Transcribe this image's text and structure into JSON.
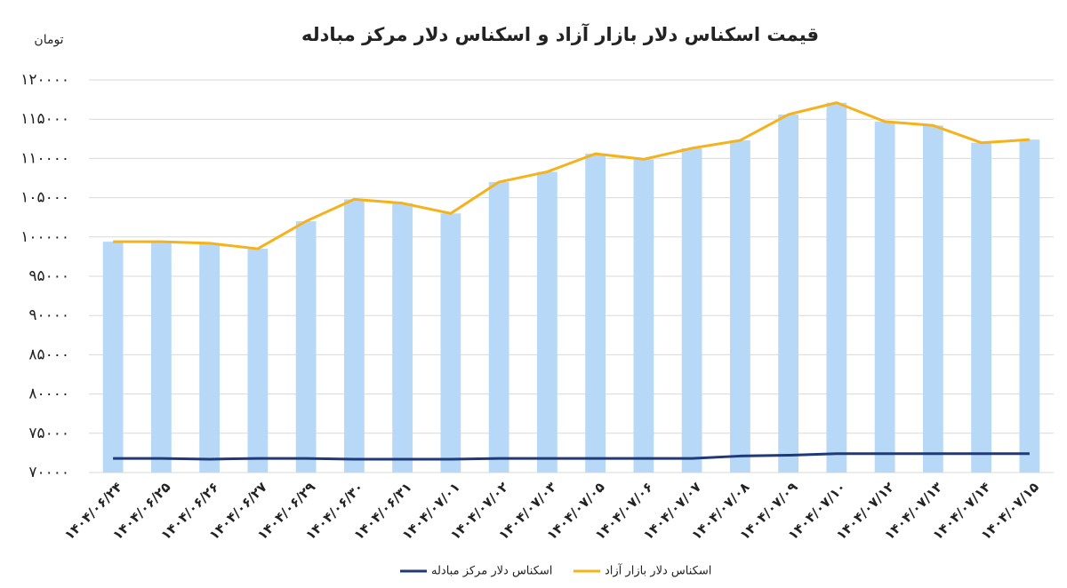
{
  "chart_data": {
    "type": "bar-line",
    "title": "قیمت اسکناس دلار بازار آزاد و اسکناس دلار مرکز مبادله",
    "y_unit": "تومان",
    "categories": [
      "۱۴۰۴/۰۶/۲۴",
      "۱۴۰۴/۰۶/۲۵",
      "۱۴۰۴/۰۶/۲۶",
      "۱۴۰۴/۰۶/۲۷",
      "۱۴۰۴/۰۶/۲۹",
      "۱۴۰۴/۰۶/۳۰",
      "۱۴۰۴/۰۶/۳۱",
      "۱۴۰۴/۰۷/۰۱",
      "۱۴۰۴/۰۷/۰۲",
      "۱۴۰۴/۰۷/۰۳",
      "۱۴۰۴/۰۷/۰۵",
      "۱۴۰۴/۰۷/۰۶",
      "۱۴۰۴/۰۷/۰۷",
      "۱۴۰۴/۰۷/۰۸",
      "۱۴۰۴/۰۷/۰۹",
      "۱۴۰۴/۰۷/۱۰",
      "۱۴۰۴/۰۷/۱۲",
      "۱۴۰۴/۰۷/۱۳",
      "۱۴۰۴/۰۷/۱۴",
      "۱۴۰۴/۰۷/۱۵"
    ],
    "series": [
      {
        "name": "اسکناس دلار مرکز مبادله",
        "color": "#1f3a7a",
        "values": [
          71800,
          71800,
          71700,
          71800,
          71800,
          71700,
          71700,
          71700,
          71800,
          71800,
          71800,
          71800,
          71800,
          72100,
          72200,
          72400,
          72400,
          72400,
          72400,
          72400
        ]
      },
      {
        "name": "اسکناس دلار بازار آزاد",
        "color": "#f5b21b",
        "bar_color": "#b8d8f8",
        "values": [
          99400,
          99400,
          99200,
          98500,
          102000,
          104800,
          104300,
          103000,
          107000,
          108300,
          110600,
          109900,
          111300,
          112300,
          115600,
          117100,
          114700,
          114200,
          112000,
          112400
        ]
      }
    ],
    "ylim": [
      70000,
      120000
    ],
    "yticks": [
      {
        "value": 70000,
        "label": "۷۰۰۰۰"
      },
      {
        "value": 75000,
        "label": "۷۵۰۰۰"
      },
      {
        "value": 80000,
        "label": "۸۰۰۰۰"
      },
      {
        "value": 85000,
        "label": "۸۵۰۰۰"
      },
      {
        "value": 90000,
        "label": "۹۰۰۰۰"
      },
      {
        "value": 95000,
        "label": "۹۵۰۰۰"
      },
      {
        "value": 100000,
        "label": "۱۰۰۰۰۰"
      },
      {
        "value": 105000,
        "label": "۱۰۵۰۰۰"
      },
      {
        "value": 110000,
        "label": "۱۱۰۰۰۰"
      },
      {
        "value": 115000,
        "label": "۱۱۵۰۰۰"
      },
      {
        "value": 120000,
        "label": "۱۲۰۰۰۰"
      }
    ],
    "grid": true
  }
}
